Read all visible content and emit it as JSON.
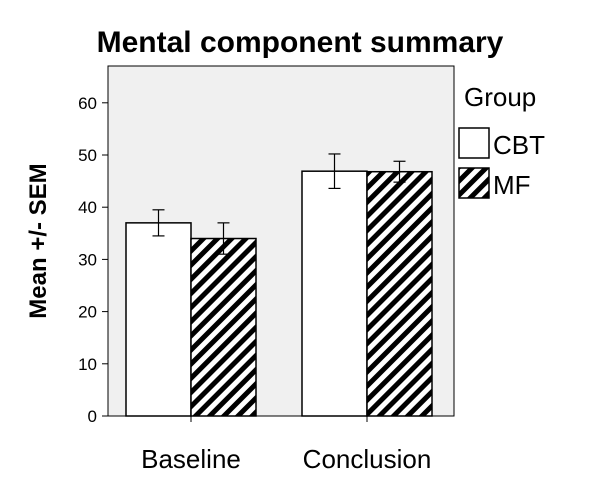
{
  "chart_data": {
    "type": "bar",
    "title": "Mental component summary",
    "xlabel": "",
    "ylabel": "Mean +/- SEM",
    "ylim": [
      0,
      65
    ],
    "yticks": [
      0,
      10,
      20,
      30,
      40,
      50,
      60
    ],
    "categories": [
      "Baseline",
      "Conclusion"
    ],
    "legend_title": "Group",
    "legend_position": "right",
    "grid": false,
    "background_color": "#f0f0f0",
    "series": [
      {
        "name": "CBT",
        "values": [
          37.0,
          46.9
        ],
        "error": [
          2.5,
          3.3
        ],
        "fill": "white"
      },
      {
        "name": "MF",
        "values": [
          34.0,
          46.8
        ],
        "error": [
          3.0,
          2.0
        ],
        "fill": "diagonal-hatch"
      }
    ]
  }
}
